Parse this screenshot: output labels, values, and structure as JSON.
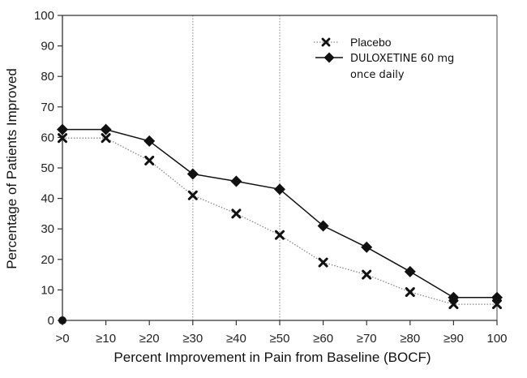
{
  "chart_data": {
    "type": "line",
    "title": "",
    "xlabel": "Percent Improvement in Pain from Baseline (BOCF)",
    "ylabel": "Percentage of Patients Improved",
    "categories": [
      ">0",
      "≥10",
      "≥20",
      "≥30",
      "≥40",
      "≥50",
      "≥60",
      "≥70",
      "≥80",
      "≥90",
      "100"
    ],
    "ylim": [
      0,
      100
    ],
    "yticks": [
      0,
      10,
      20,
      30,
      40,
      50,
      60,
      70,
      80,
      90,
      100
    ],
    "grid": false,
    "reference_lines_at": [
      "≥30",
      "≥50"
    ],
    "legend_position": "top-right",
    "origin_marker": {
      "x": ">0",
      "y": 0
    },
    "series": [
      {
        "name": "Placebo",
        "marker": "x",
        "line_style": "dotted",
        "values": [
          59.8,
          59.8,
          52.4,
          41.0,
          35.0,
          28.0,
          19.0,
          15.0,
          9.3,
          5.3,
          5.3
        ]
      },
      {
        "name": "DULOXETINE 60 mg once daily",
        "legend_lines": [
          "DULOXETINE 60 mg",
          "once daily"
        ],
        "marker": "diamond",
        "line_style": "solid",
        "values": [
          62.6,
          62.6,
          58.8,
          48.0,
          45.6,
          43.0,
          31.0,
          24.0,
          16.0,
          7.5,
          7.5
        ]
      }
    ]
  },
  "colors": {
    "line": "#111111",
    "axis": "#333333",
    "placebo_line": "#888888",
    "reference_line": "#999999"
  }
}
